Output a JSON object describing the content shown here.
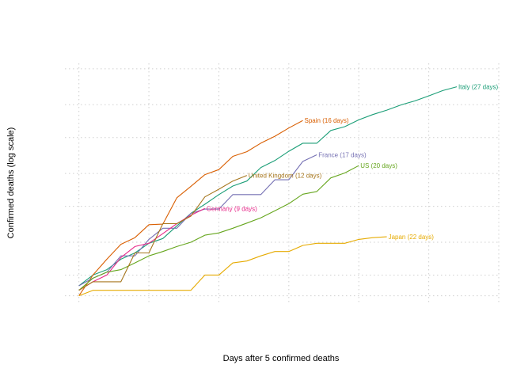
{
  "chart_data": {
    "type": "line",
    "title": "",
    "xlabel": "Days after 5 confirmed deaths",
    "ylabel": "Confirmed deaths (log scale)",
    "x_tick_labels_shown": false,
    "y_tick_labels_shown": false,
    "grid": true,
    "legend": "direct-labels",
    "xlim": [
      -1,
      30
    ],
    "ylim": [
      4,
      12000
    ],
    "yscale": "log",
    "x_gridlines": [
      0,
      5,
      10,
      15,
      20,
      25,
      30
    ],
    "y_gridlines": [
      5,
      10,
      30,
      100,
      300,
      1000,
      3000,
      10000
    ],
    "series": [
      {
        "name": "Italy (27 days)",
        "color": "#1b9e77",
        "values": [
          [
            0,
            7
          ],
          [
            1,
            10
          ],
          [
            2,
            12
          ],
          [
            3,
            17
          ],
          [
            4,
            21
          ],
          [
            5,
            29
          ],
          [
            6,
            34
          ],
          [
            7,
            52
          ],
          [
            8,
            79
          ],
          [
            9,
            107
          ],
          [
            10,
            148
          ],
          [
            11,
            197
          ],
          [
            12,
            233
          ],
          [
            13,
            366
          ],
          [
            14,
            463
          ],
          [
            15,
            631
          ],
          [
            16,
            827
          ],
          [
            17,
            827
          ],
          [
            18,
            1266
          ],
          [
            19,
            1441
          ],
          [
            20,
            1809
          ],
          [
            21,
            2158
          ],
          [
            22,
            2503
          ],
          [
            23,
            2978
          ],
          [
            24,
            3405
          ],
          [
            25,
            4032
          ],
          [
            26,
            4825
          ],
          [
            27,
            5476
          ]
        ]
      },
      {
        "name": "Spain (16 days)",
        "color": "#d95f02",
        "values": [
          [
            0,
            5
          ],
          [
            1,
            10
          ],
          [
            2,
            17
          ],
          [
            3,
            28
          ],
          [
            4,
            35
          ],
          [
            5,
            54
          ],
          [
            6,
            55
          ],
          [
            7,
            133
          ],
          [
            8,
            195
          ],
          [
            9,
            289
          ],
          [
            10,
            342
          ],
          [
            11,
            533
          ],
          [
            12,
            623
          ],
          [
            13,
            830
          ],
          [
            14,
            1043
          ],
          [
            15,
            1375
          ],
          [
            16,
            1772
          ]
        ]
      },
      {
        "name": "France (17 days)",
        "color": "#7570b3",
        "values": [
          [
            0,
            7
          ],
          [
            1,
            9
          ],
          [
            2,
            11
          ],
          [
            3,
            19
          ],
          [
            4,
            19
          ],
          [
            5,
            33
          ],
          [
            6,
            48
          ],
          [
            7,
            48
          ],
          [
            8,
            79
          ],
          [
            9,
            91
          ],
          [
            10,
            91
          ],
          [
            11,
            148
          ],
          [
            12,
            148
          ],
          [
            13,
            148
          ],
          [
            14,
            243
          ],
          [
            15,
            243
          ],
          [
            16,
            450
          ],
          [
            17,
            562
          ]
        ]
      },
      {
        "name": "Germany (9 days)",
        "color": "#e7298a",
        "values": [
          [
            0,
            6
          ],
          [
            1,
            8
          ],
          [
            2,
            10
          ],
          [
            3,
            18
          ],
          [
            4,
            26
          ],
          [
            5,
            29
          ],
          [
            6,
            40
          ],
          [
            7,
            56
          ],
          [
            8,
            74
          ],
          [
            9,
            93
          ]
        ]
      },
      {
        "name": "US (20 days)",
        "color": "#66a61e",
        "values": [
          [
            0,
            6
          ],
          [
            1,
            9
          ],
          [
            2,
            11
          ],
          [
            3,
            12
          ],
          [
            4,
            15
          ],
          [
            5,
            19
          ],
          [
            6,
            22
          ],
          [
            7,
            26
          ],
          [
            8,
            30
          ],
          [
            9,
            38
          ],
          [
            10,
            41
          ],
          [
            11,
            48
          ],
          [
            12,
            57
          ],
          [
            13,
            68
          ],
          [
            14,
            86
          ],
          [
            15,
            109
          ],
          [
            16,
            150
          ],
          [
            17,
            164
          ],
          [
            18,
            259
          ],
          [
            19,
            305
          ],
          [
            20,
            390
          ]
        ]
      },
      {
        "name": "United Kingdom (12 days)",
        "color": "#a6761d",
        "values": [
          [
            0,
            6
          ],
          [
            1,
            8
          ],
          [
            2,
            8
          ],
          [
            3,
            8
          ],
          [
            4,
            21
          ],
          [
            5,
            21
          ],
          [
            6,
            56
          ],
          [
            7,
            56
          ],
          [
            8,
            72
          ],
          [
            9,
            137
          ],
          [
            10,
            177
          ],
          [
            11,
            233
          ],
          [
            12,
            281
          ]
        ]
      },
      {
        "name": "Japan (22 days)",
        "color": "#e6ab02",
        "values": [
          [
            0,
            5
          ],
          [
            1,
            6
          ],
          [
            2,
            6
          ],
          [
            3,
            6
          ],
          [
            4,
            6
          ],
          [
            5,
            6
          ],
          [
            6,
            6
          ],
          [
            7,
            6
          ],
          [
            8,
            6
          ],
          [
            9,
            10
          ],
          [
            10,
            10
          ],
          [
            11,
            15
          ],
          [
            12,
            16
          ],
          [
            13,
            19
          ],
          [
            14,
            22
          ],
          [
            15,
            22
          ],
          [
            16,
            27
          ],
          [
            17,
            29
          ],
          [
            18,
            29
          ],
          [
            19,
            29
          ],
          [
            20,
            33
          ],
          [
            21,
            35
          ],
          [
            22,
            36
          ]
        ]
      }
    ]
  }
}
